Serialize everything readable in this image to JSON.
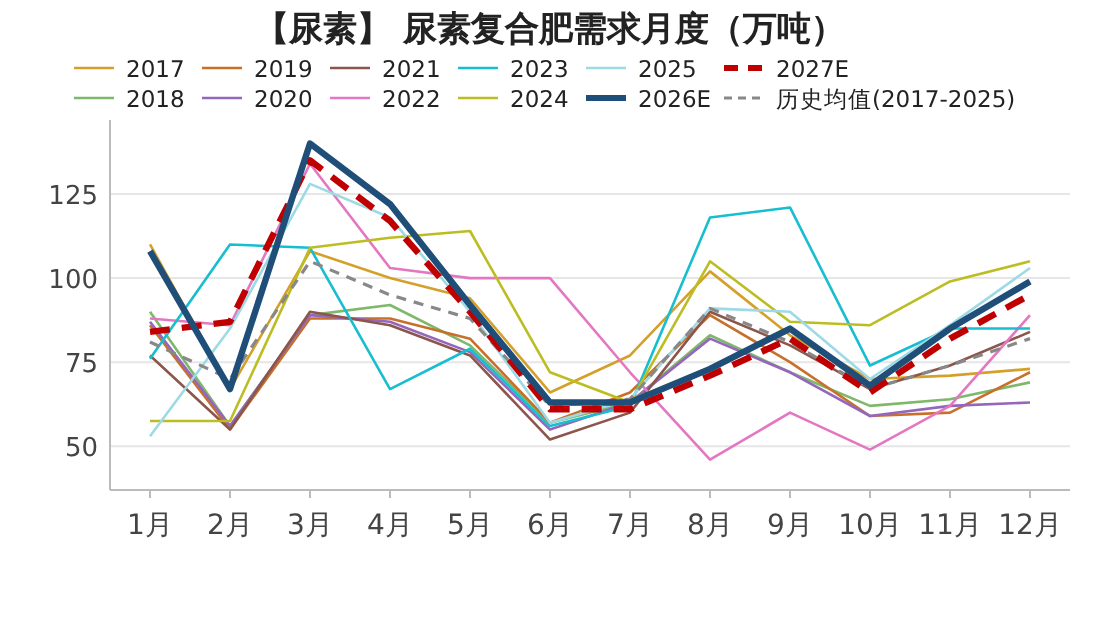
{
  "chart_data": {
    "type": "line",
    "title": "【尿素】 尿素复合肥需求月度（万吨）",
    "categories": [
      "1月",
      "2月",
      "3月",
      "4月",
      "5月",
      "6月",
      "7月",
      "8月",
      "9月",
      "10月",
      "11月",
      "12月"
    ],
    "ylim": [
      37,
      147
    ],
    "yticks": [
      50,
      75,
      100,
      125
    ],
    "grid": "y",
    "legend": "top",
    "marker": "none",
    "series": [
      {
        "name": "2017",
        "color": "#d4a02a",
        "line_style": "solid",
        "values": [
          110,
          67,
          108,
          100,
          94,
          66,
          77,
          102,
          83,
          70,
          71,
          73
        ]
      },
      {
        "name": "2018",
        "color": "#7fb86a",
        "line_style": "solid",
        "values": [
          90,
          56,
          89,
          92,
          80,
          57,
          63,
          83,
          72,
          62,
          64,
          69
        ]
      },
      {
        "name": "2019",
        "color": "#c8702a",
        "line_style": "solid",
        "values": [
          86,
          55,
          88,
          88,
          82,
          57,
          66,
          89,
          75,
          59,
          60,
          72
        ]
      },
      {
        "name": "2020",
        "color": "#9467bd",
        "line_style": "solid",
        "values": [
          87,
          56,
          89,
          87,
          78,
          55,
          63,
          82,
          72,
          59,
          62,
          63
        ]
      },
      {
        "name": "2021",
        "color": "#8c564b",
        "line_style": "solid",
        "values": [
          77,
          55,
          90,
          86,
          77,
          52,
          60,
          90,
          80,
          67,
          74,
          84
        ]
      },
      {
        "name": "2022",
        "color": "#e377c2",
        "line_style": "solid",
        "values": [
          88,
          86,
          134,
          103,
          100,
          100,
          72,
          46,
          60,
          49,
          62,
          89
        ]
      },
      {
        "name": "2023",
        "color": "#17becf",
        "line_style": "solid",
        "values": [
          76,
          110,
          109,
          67,
          79,
          56,
          62,
          118,
          121,
          74,
          85,
          85
        ]
      },
      {
        "name": "2024",
        "color": "#bcbd22",
        "line_style": "solid",
        "values": [
          57.5,
          57.5,
          109,
          112,
          114,
          72,
          63,
          105,
          87,
          86,
          99,
          105
        ]
      },
      {
        "name": "2025",
        "color": "#9edae5",
        "line_style": "solid",
        "values": [
          53,
          85,
          128,
          118,
          90,
          57,
          64,
          91,
          90,
          70,
          86,
          103
        ]
      },
      {
        "name": "2026E",
        "color": "#1f4e79",
        "line_style": "solid",
        "values": [
          108,
          67,
          140,
          122,
          92,
          63,
          63,
          73,
          85,
          68,
          85,
          99
        ]
      },
      {
        "name": "2027E",
        "color": "#c00000",
        "line_style": "dashed",
        "values": [
          84,
          87,
          135,
          117,
          90,
          61,
          61,
          71,
          82,
          66,
          82,
          95
        ]
      },
      {
        "name": "历史均值(2017-2025)",
        "color": "#888888",
        "line_style": "dashed",
        "values": [
          81,
          70,
          105,
          95,
          88,
          62,
          64,
          91,
          81,
          67,
          74,
          82
        ]
      }
    ]
  }
}
